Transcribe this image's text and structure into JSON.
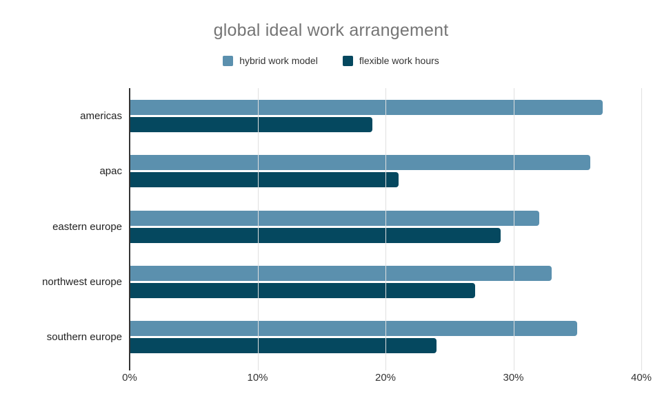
{
  "chart_data": {
    "type": "bar",
    "orientation": "horizontal",
    "title": "global ideal work arrangement",
    "categories": [
      "americas",
      "apac",
      "eastern europe",
      "northwest europe",
      "southern europe"
    ],
    "series": [
      {
        "name": "hybrid work model",
        "color": "#5b90ae",
        "values": [
          37,
          36,
          32,
          33,
          35
        ]
      },
      {
        "name": "flexible work hours",
        "color": "#05485f",
        "values": [
          19,
          21,
          29,
          27,
          24
        ]
      }
    ],
    "x_tick_labels": [
      "0%",
      "10%",
      "20%",
      "30%",
      "40%"
    ],
    "x_tick_values": [
      0,
      10,
      20,
      30,
      40
    ],
    "xlim": [
      0,
      40
    ],
    "ylabel": "",
    "xlabel": "",
    "grid": true,
    "legend_position": "top"
  },
  "colors": {
    "background": "#ffffff",
    "title": "#757575",
    "axis_line": "#333333",
    "gridline": "#e0e0e0",
    "tick_label": "#333333",
    "category_label": "#222222"
  }
}
